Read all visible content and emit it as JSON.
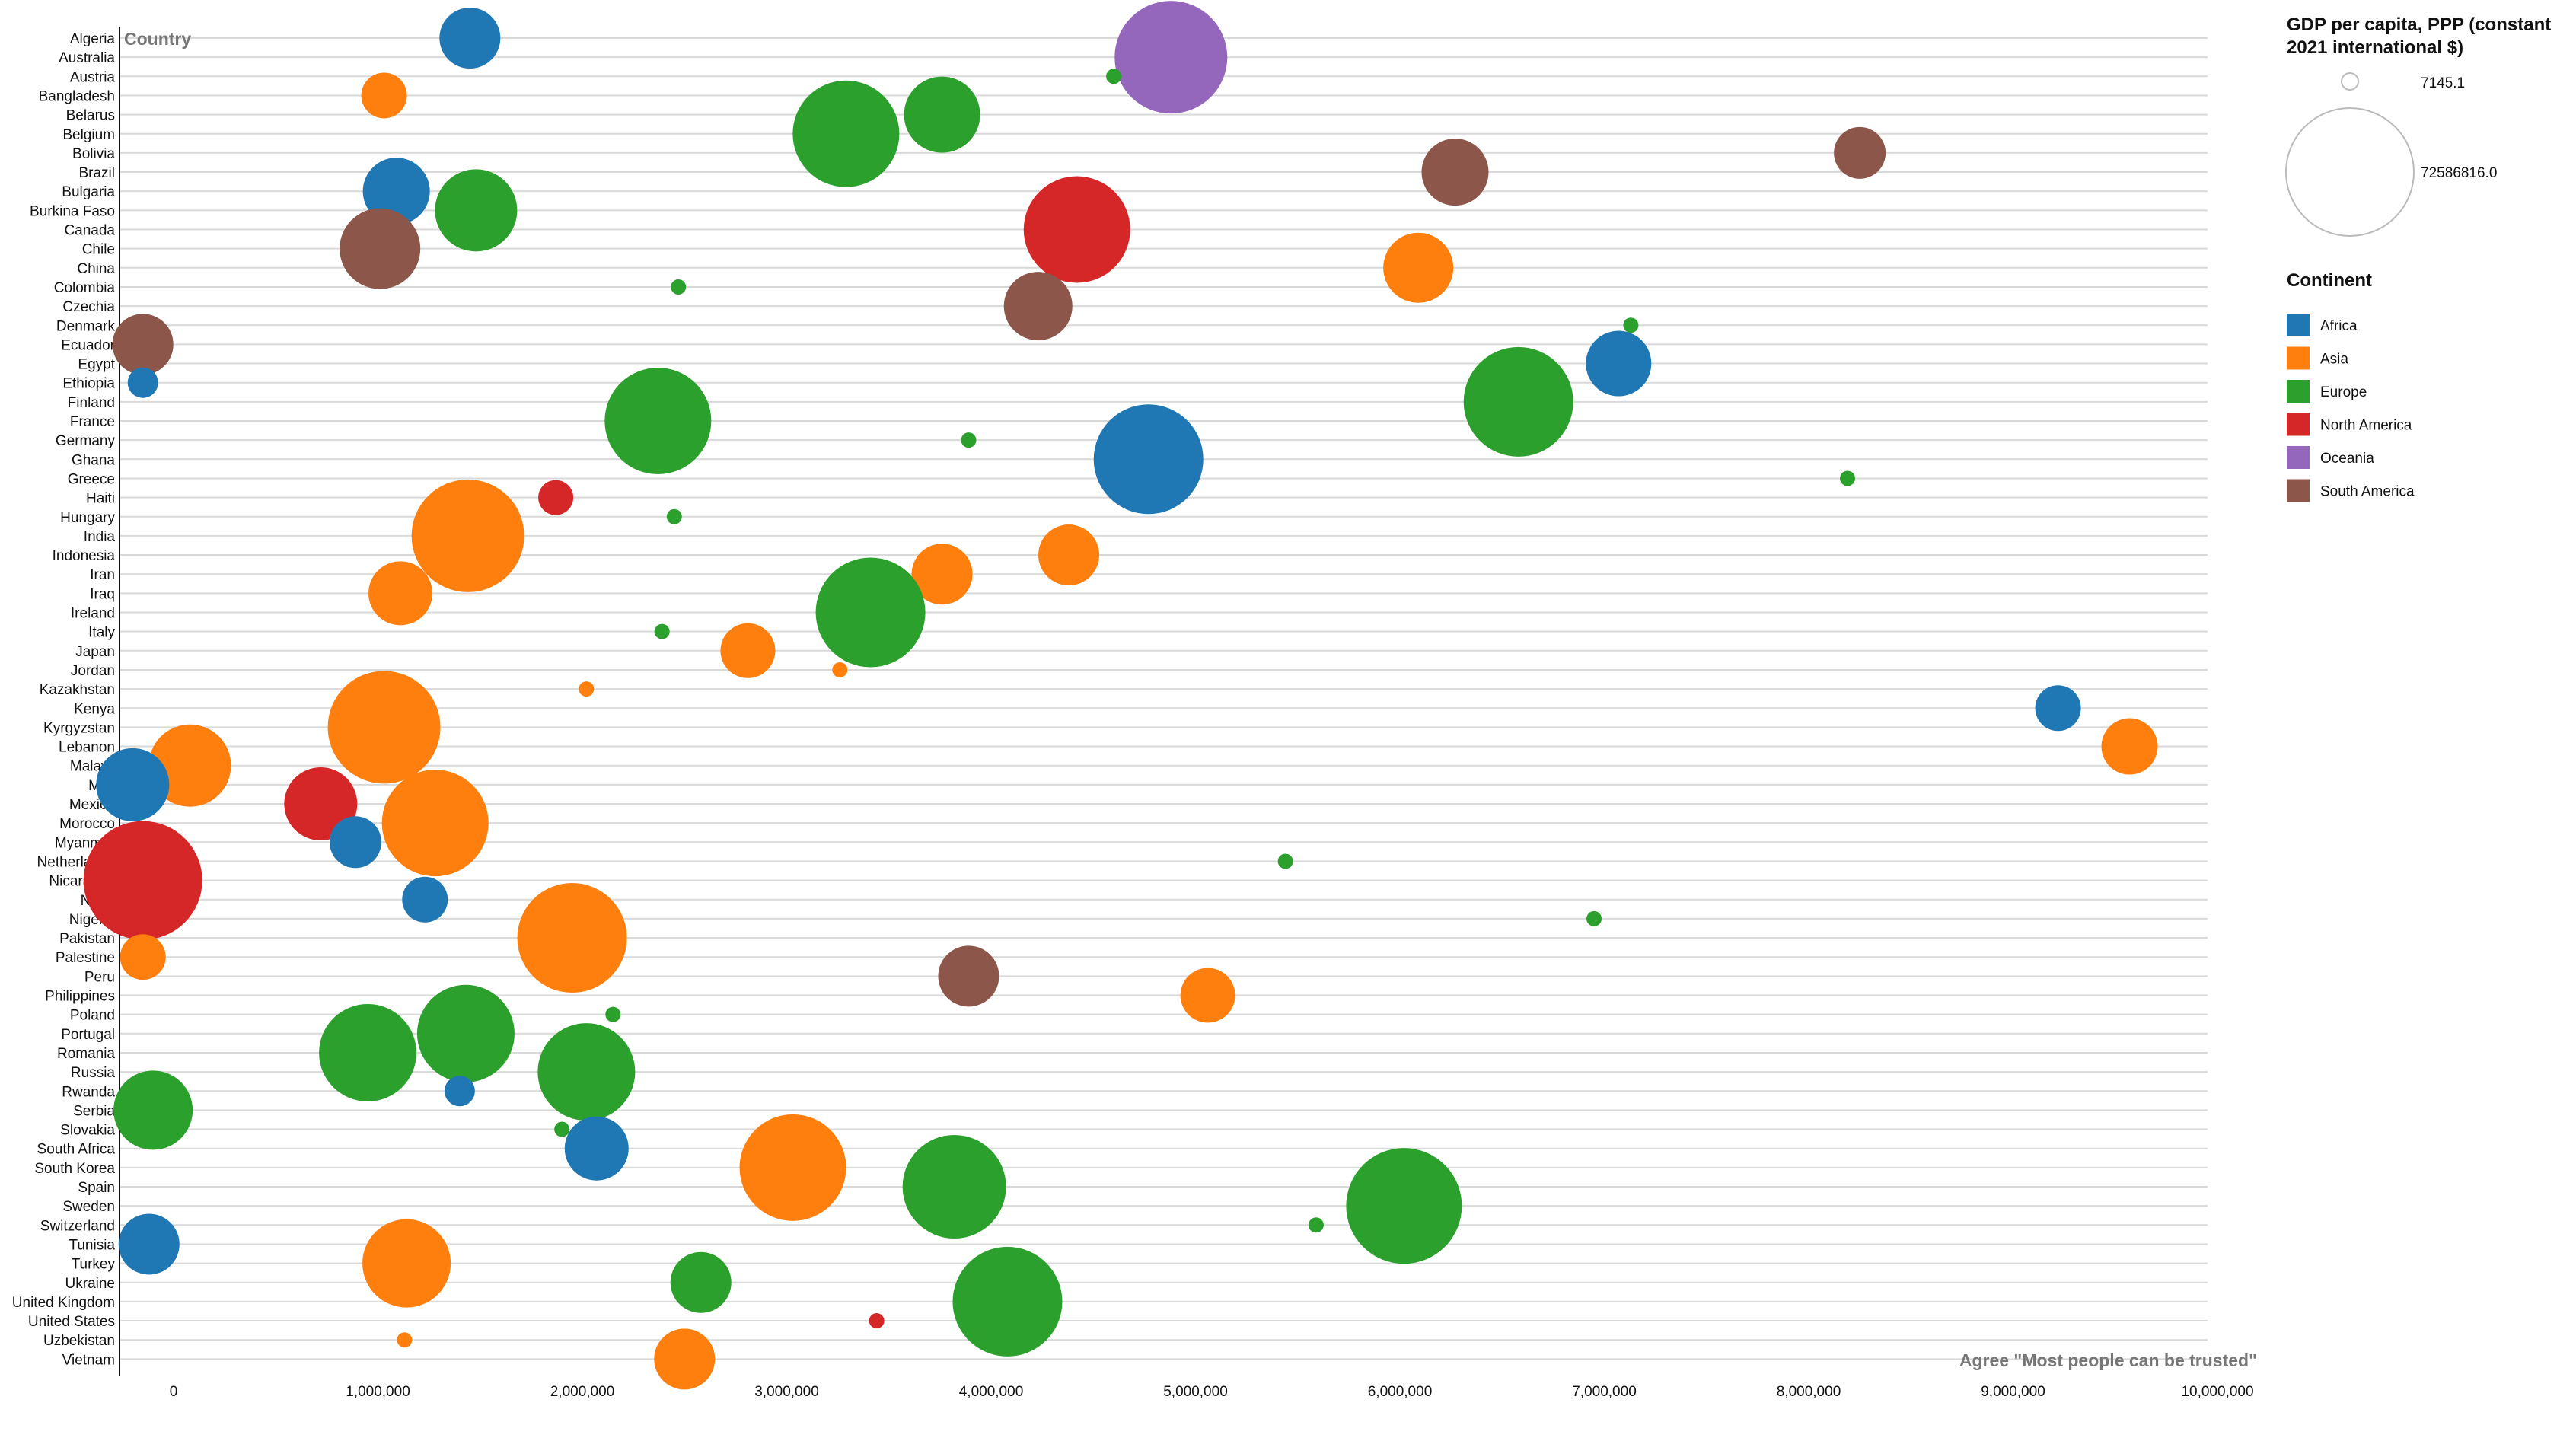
{
  "chart_data": {
    "type": "scatter",
    "title": "",
    "xlabel": "Agree \"Most people can be trusted\"",
    "ylabel": "Country",
    "xlim": [
      -150000,
      10000000
    ],
    "x_ticks": [
      "0",
      "1,000,000",
      "2,000,000",
      "3,000,000",
      "4,000,000",
      "5,000,000",
      "6,000,000",
      "7,000,000",
      "8,000,000",
      "9,000,000",
      "10,000,000"
    ],
    "grid": "horizontal",
    "categories": [
      "Algeria",
      "Australia",
      "Austria",
      "Bangladesh",
      "Belarus",
      "Belgium",
      "Bolivia",
      "Brazil",
      "Bulgaria",
      "Burkina Faso",
      "Canada",
      "Chile",
      "China",
      "Colombia",
      "Czechia",
      "Denmark",
      "Ecuador",
      "Egypt",
      "Ethiopia",
      "Finland",
      "France",
      "Germany",
      "Ghana",
      "Greece",
      "Haiti",
      "Hungary",
      "India",
      "Indonesia",
      "Iran",
      "Iraq",
      "Ireland",
      "Italy",
      "Japan",
      "Jordan",
      "Kazakhstan",
      "Kenya",
      "Kyrgyzstan",
      "Lebanon",
      "Malawi",
      "Mali",
      "Mexico",
      "Morocco",
      "Myanmar",
      "Netherlands",
      "Nicaragua",
      "Niger",
      "Nigeria",
      "Pakistan",
      "Palestine",
      "Peru",
      "Philippines",
      "Poland",
      "Portugal",
      "Romania",
      "Russia",
      "Rwanda",
      "Serbia",
      "Slovakia",
      "South Africa",
      "South Korea",
      "Spain",
      "Sweden",
      "Switzerland",
      "Tunisia",
      "Turkey",
      "Ukraine",
      "United Kingdom",
      "United States",
      "Uzbekistan",
      "Vietnam"
    ],
    "size_legend": {
      "title": "GDP per capita, PPP (constant 2021 international $)",
      "min_label": "7145.1",
      "max_label": "72586816.0"
    },
    "color_legend": {
      "title": "Continent",
      "items": [
        {
          "name": "Africa",
          "color": "#1f77b4"
        },
        {
          "name": "Asia",
          "color": "#ff7f0e"
        },
        {
          "name": "Europe",
          "color": "#2ca02c"
        },
        {
          "name": "North America",
          "color": "#d62728"
        },
        {
          "name": "Oceania",
          "color": "#9467bd"
        },
        {
          "name": "South America",
          "color": "#8c564b"
        }
      ]
    },
    "points": [
      {
        "country": "Algeria",
        "x": 1450000,
        "r": 0.4,
        "continent": "Africa"
      },
      {
        "country": "Australia",
        "x": 4880000,
        "r": 0.74,
        "continent": "Oceania"
      },
      {
        "country": "Austria",
        "x": 4600000,
        "r": 0.1,
        "continent": "Europe"
      },
      {
        "country": "Bangladesh",
        "x": 1030000,
        "r": 0.3,
        "continent": "Asia"
      },
      {
        "country": "Belarus",
        "x": 3760000,
        "r": 0.5,
        "continent": "Europe"
      },
      {
        "country": "Belgium",
        "x": 3290000,
        "r": 0.7,
        "continent": "Europe"
      },
      {
        "country": "Bolivia",
        "x": 8250000,
        "r": 0.34,
        "continent": "South America"
      },
      {
        "country": "Brazil",
        "x": 6270000,
        "r": 0.44,
        "continent": "South America"
      },
      {
        "country": "Bulgaria",
        "x": 1090000,
        "r": 0.44,
        "continent": "Africa"
      },
      {
        "country": "Burkina Faso",
        "x": 1480000,
        "r": 0.54,
        "continent": "Europe"
      },
      {
        "country": "Canada",
        "x": 4420000,
        "r": 0.7,
        "continent": "North America"
      },
      {
        "country": "Chile",
        "x": 1010000,
        "r": 0.53,
        "continent": "South America"
      },
      {
        "country": "China",
        "x": 6090000,
        "r": 0.46,
        "continent": "Asia"
      },
      {
        "country": "Colombia",
        "x": 2470000,
        "r": 0.1,
        "continent": "Europe"
      },
      {
        "country": "Czechia",
        "x": 4230000,
        "r": 0.45,
        "continent": "South America"
      },
      {
        "country": "Denmark",
        "x": 7130000,
        "r": 0.1,
        "continent": "Europe"
      },
      {
        "country": "Ecuador",
        "x": -150000,
        "r": 0.4,
        "continent": "South America"
      },
      {
        "country": "Egypt",
        "x": 7070000,
        "r": 0.43,
        "continent": "Africa"
      },
      {
        "country": "Ethiopia",
        "x": -150000,
        "r": 0.2,
        "continent": "Africa"
      },
      {
        "country": "Finland",
        "x": 6580000,
        "r": 0.72,
        "continent": "Europe"
      },
      {
        "country": "France",
        "x": 2370000,
        "r": 0.7,
        "continent": "Europe"
      },
      {
        "country": "Germany",
        "x": 3890000,
        "r": 0.1,
        "continent": "Europe"
      },
      {
        "country": "Ghana",
        "x": 4770000,
        "r": 0.72,
        "continent": "Africa"
      },
      {
        "country": "Greece",
        "x": 8190000,
        "r": 0.1,
        "continent": "Europe"
      },
      {
        "country": "Haiti",
        "x": 1870000,
        "r": 0.23,
        "continent": "North America"
      },
      {
        "country": "Hungary",
        "x": 2450000,
        "r": 0.1,
        "continent": "Europe"
      },
      {
        "country": "India",
        "x": 1440000,
        "r": 0.74,
        "continent": "Asia"
      },
      {
        "country": "Indonesia",
        "x": 4380000,
        "r": 0.4,
        "continent": "Asia"
      },
      {
        "country": "Iran",
        "x": 3760000,
        "r": 0.4,
        "continent": "Asia"
      },
      {
        "country": "Iraq",
        "x": 1110000,
        "r": 0.42,
        "continent": "Asia"
      },
      {
        "country": "Ireland",
        "x": 3410000,
        "r": 0.72,
        "continent": "Europe"
      },
      {
        "country": "Italy",
        "x": 2390000,
        "r": 0.1,
        "continent": "Europe"
      },
      {
        "country": "Japan",
        "x": 2810000,
        "r": 0.36,
        "continent": "Asia"
      },
      {
        "country": "Jordan",
        "x": 3260000,
        "r": 0.1,
        "continent": "Asia"
      },
      {
        "country": "Kazakhstan",
        "x": 2020000,
        "r": 0.1,
        "continent": "Asia"
      },
      {
        "country": "Kenya",
        "x": 9220000,
        "r": 0.3,
        "continent": "Africa"
      },
      {
        "country": "Kyrgyzstan",
        "x": 1030000,
        "r": 0.74,
        "continent": "Asia"
      },
      {
        "country": "Lebanon",
        "x": 9570000,
        "r": 0.37,
        "continent": "Asia"
      },
      {
        "country": "Malawi",
        "x": 80000,
        "r": 0.54,
        "continent": "Asia"
      },
      {
        "country": "Mali",
        "x": -200000,
        "r": 0.48,
        "continent": "Africa"
      },
      {
        "country": "Mexico",
        "x": 720000,
        "r": 0.48,
        "continent": "North America"
      },
      {
        "country": "Morocco",
        "x": 1280000,
        "r": 0.7,
        "continent": "Asia"
      },
      {
        "country": "Myanmar",
        "x": 890000,
        "r": 0.34,
        "continent": "Africa"
      },
      {
        "country": "Netherlands",
        "x": 5440000,
        "r": 0.1,
        "continent": "Europe"
      },
      {
        "country": "Nicaragua",
        "x": -150000,
        "r": 0.78,
        "continent": "North America"
      },
      {
        "country": "Niger",
        "x": 1230000,
        "r": 0.3,
        "continent": "Africa"
      },
      {
        "country": "Nigeria",
        "x": 6950000,
        "r": 0.1,
        "continent": "Europe"
      },
      {
        "country": "Pakistan",
        "x": 1950000,
        "r": 0.72,
        "continent": "Asia"
      },
      {
        "country": "Palestine",
        "x": -150000,
        "r": 0.3,
        "continent": "Asia"
      },
      {
        "country": "Peru",
        "x": 3890000,
        "r": 0.4,
        "continent": "South America"
      },
      {
        "country": "Philippines",
        "x": 5060000,
        "r": 0.36,
        "continent": "Asia"
      },
      {
        "country": "Poland",
        "x": 2150000,
        "r": 0.1,
        "continent": "Europe"
      },
      {
        "country": "Portugal",
        "x": 1430000,
        "r": 0.64,
        "continent": "Europe"
      },
      {
        "country": "Romania",
        "x": 950000,
        "r": 0.64,
        "continent": "Europe"
      },
      {
        "country": "Russia",
        "x": 2020000,
        "r": 0.64,
        "continent": "Europe"
      },
      {
        "country": "Rwanda",
        "x": 1400000,
        "r": 0.2,
        "continent": "Africa"
      },
      {
        "country": "Serbia",
        "x": -100000,
        "r": 0.52,
        "continent": "Europe"
      },
      {
        "country": "Slovakia",
        "x": 1900000,
        "r": 0.1,
        "continent": "Europe"
      },
      {
        "country": "South Africa",
        "x": 2070000,
        "r": 0.42,
        "continent": "Africa"
      },
      {
        "country": "South Korea",
        "x": 3030000,
        "r": 0.7,
        "continent": "Asia"
      },
      {
        "country": "Spain",
        "x": 3820000,
        "r": 0.68,
        "continent": "Europe"
      },
      {
        "country": "Sweden",
        "x": 6020000,
        "r": 0.76,
        "continent": "Europe"
      },
      {
        "country": "Switzerland",
        "x": 5590000,
        "r": 0.1,
        "continent": "Europe"
      },
      {
        "country": "Tunisia",
        "x": -120000,
        "r": 0.4,
        "continent": "Africa"
      },
      {
        "country": "Turkey",
        "x": 1140000,
        "r": 0.58,
        "continent": "Asia"
      },
      {
        "country": "Ukraine",
        "x": 2580000,
        "r": 0.4,
        "continent": "Europe"
      },
      {
        "country": "United Kingdom",
        "x": 4080000,
        "r": 0.72,
        "continent": "Europe"
      },
      {
        "country": "United States",
        "x": 3440000,
        "r": 0.1,
        "continent": "North America"
      },
      {
        "country": "Uzbekistan",
        "x": 1130000,
        "r": 0.1,
        "continent": "Asia"
      },
      {
        "country": "Vietnam",
        "x": 2500000,
        "r": 0.4,
        "continent": "Asia"
      }
    ]
  }
}
